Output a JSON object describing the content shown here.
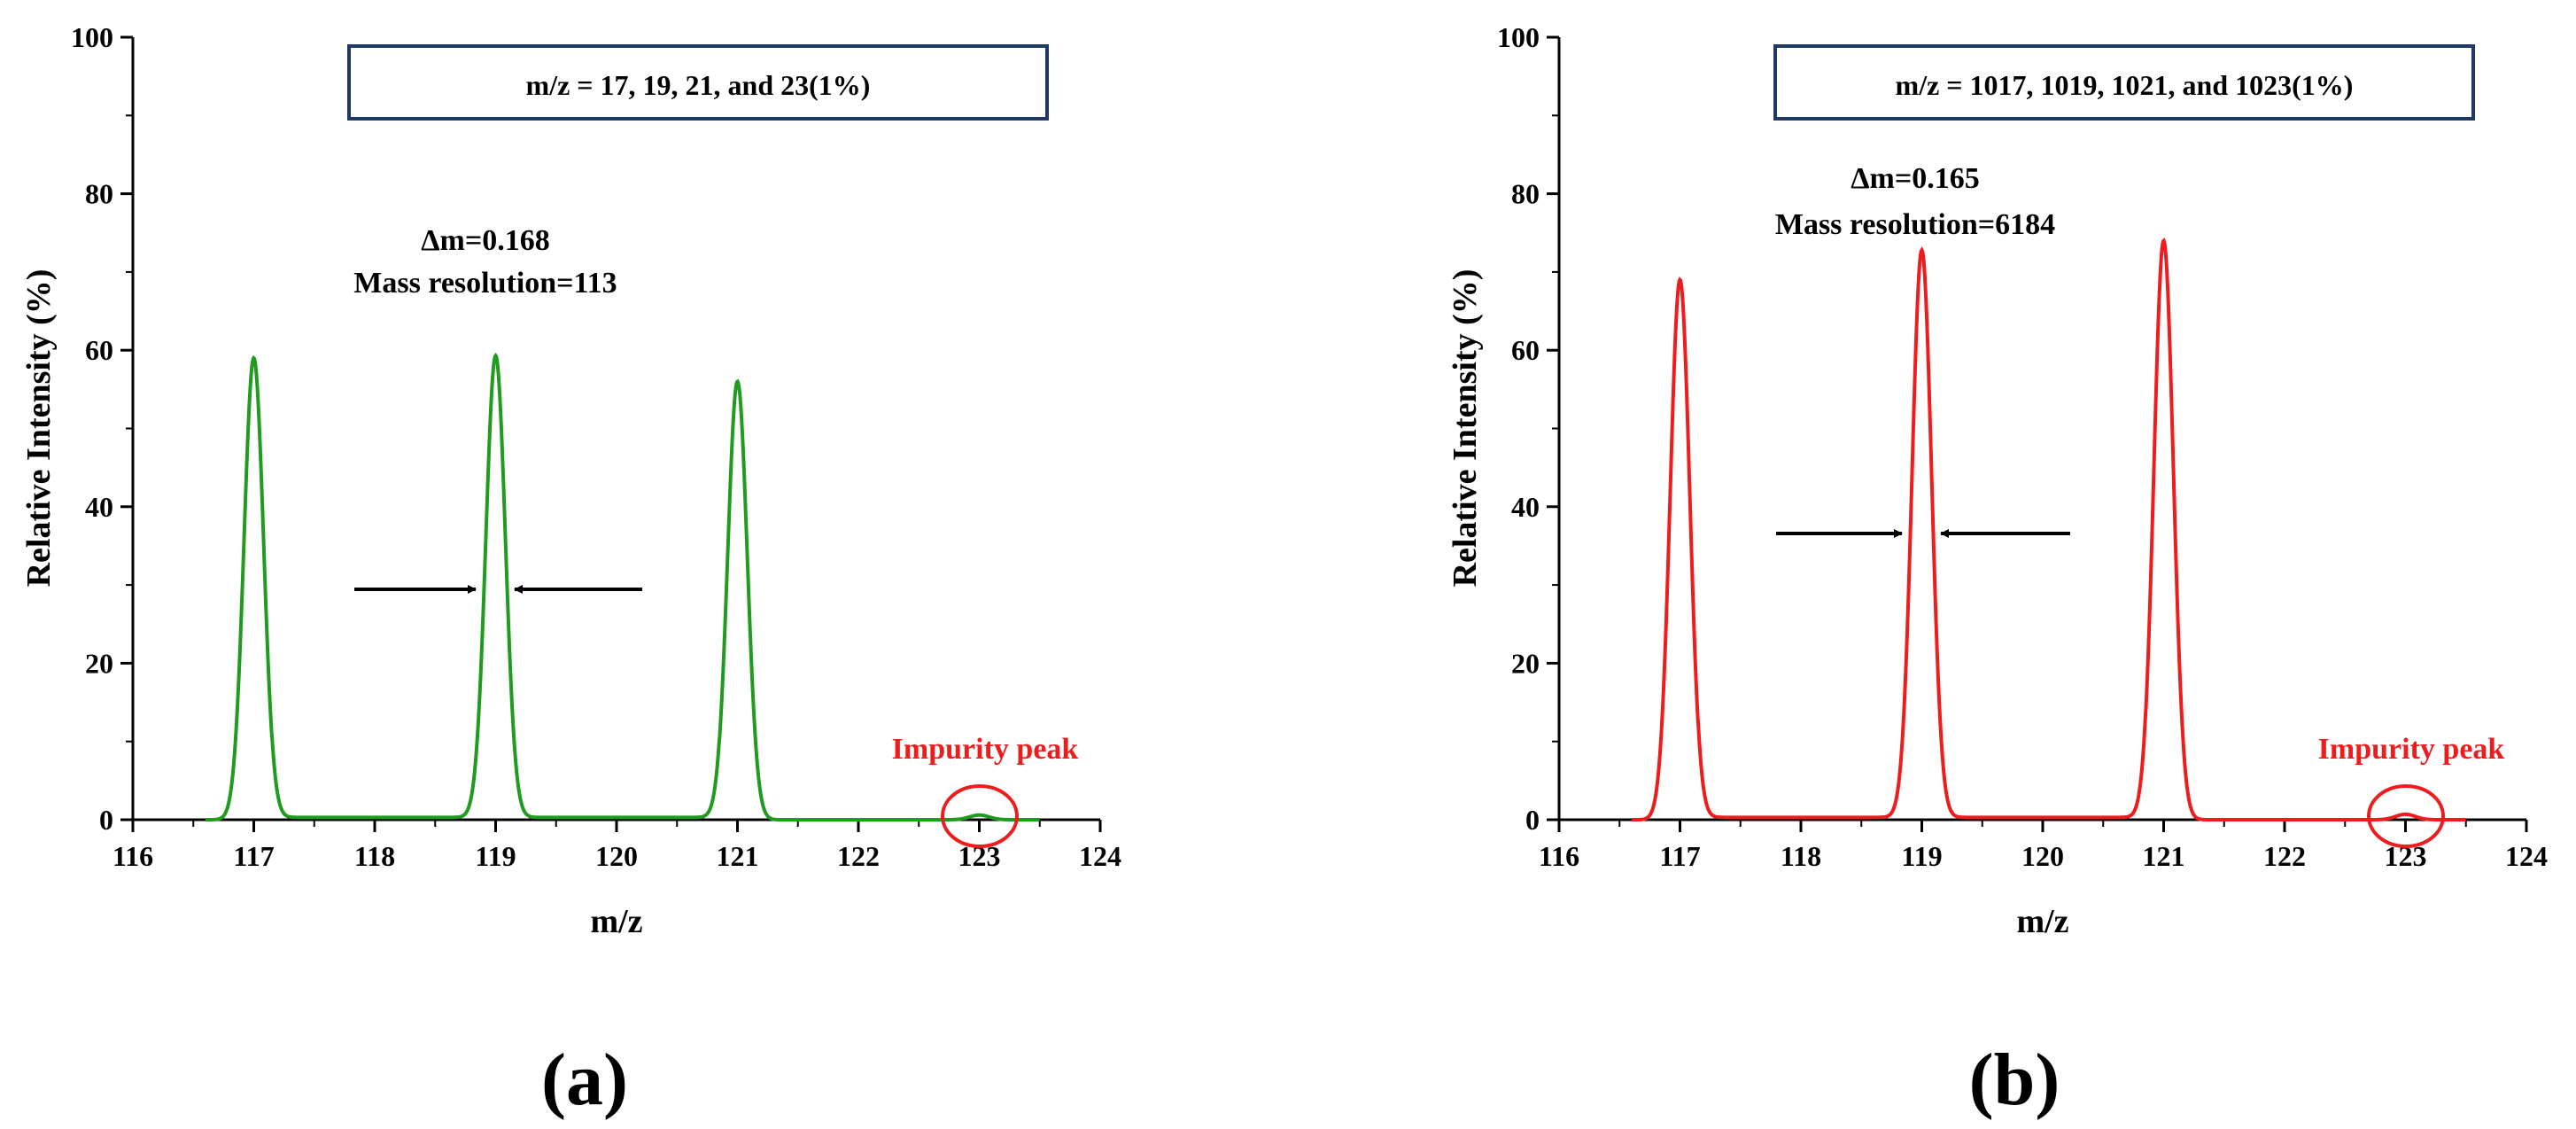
{
  "chart_data": [
    {
      "type": "line",
      "panel_label": "(a)",
      "box_label": "m/z = 17, 19, 21, and 23(1%)",
      "delta_label": "Δm=0.168",
      "resolution_label": "Mass resolution=113",
      "impurity_label": "Impurity peak",
      "xlabel": "m/z",
      "ylabel": "Relative Intensity (%)",
      "xlim": [
        116,
        124
      ],
      "ylim": [
        0,
        100
      ],
      "xticks": [
        "116",
        "117",
        "118",
        "119",
        "120",
        "121",
        "122",
        "123",
        "124"
      ],
      "yticks": [
        "0",
        "20",
        "40",
        "60",
        "80",
        "100"
      ],
      "series": [
        {
          "name": "spectrum",
          "color": "#1f9b1f",
          "peaks": [
            {
              "mz": 117.0,
              "intensity": 59,
              "fwhm": 0.19
            },
            {
              "mz": 119.0,
              "intensity": 59,
              "fwhm": 0.19
            },
            {
              "mz": 121.0,
              "intensity": 56,
              "fwhm": 0.19
            },
            {
              "mz": 123.0,
              "intensity": 0.6,
              "fwhm": 0.19
            }
          ]
        }
      ]
    },
    {
      "type": "line",
      "panel_label": "(b)",
      "box_label": "m/z = 1017, 1019, 1021, and 1023(1%)",
      "delta_label": "Δm=0.165",
      "resolution_label": "Mass resolution=6184",
      "impurity_label": "Impurity peak",
      "xlabel": "m/z",
      "ylabel": "Relative Intensity (%)",
      "xlim": [
        116,
        124
      ],
      "ylim": [
        0,
        100
      ],
      "xticks": [
        "116",
        "117",
        "118",
        "119",
        "120",
        "121",
        "122",
        "123",
        "124"
      ],
      "yticks": [
        "0",
        "20",
        "40",
        "60",
        "80",
        "100"
      ],
      "series": [
        {
          "name": "spectrum",
          "color": "#ee1c1c",
          "peaks": [
            {
              "mz": 117.0,
              "intensity": 69,
              "fwhm": 0.19
            },
            {
              "mz": 119.0,
              "intensity": 72.5,
              "fwhm": 0.19
            },
            {
              "mz": 121.0,
              "intensity": 74,
              "fwhm": 0.19
            },
            {
              "mz": 123.0,
              "intensity": 0.7,
              "fwhm": 0.19
            }
          ]
        }
      ]
    }
  ],
  "colors": {
    "annotation_red": "#ee1c1c",
    "box_border": "#1f3864",
    "axis": "#000000"
  }
}
